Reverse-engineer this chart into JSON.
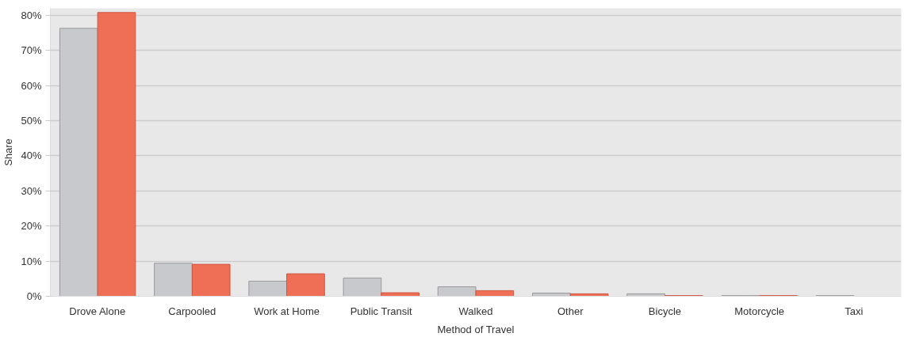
{
  "chart_data": {
    "type": "bar",
    "xlabel": "Method of Travel",
    "ylabel": "Share",
    "categories": [
      "Drove Alone",
      "Carpooled",
      "Work at Home",
      "Public Transit",
      "Walked",
      "Other",
      "Bicycle",
      "Motorcycle",
      "Taxi"
    ],
    "series": [
      {
        "color": "#c8c9cd",
        "values": [
          76.3,
          9.4,
          4.3,
          5.2,
          2.7,
          0.9,
          0.7,
          0.2,
          0.2
        ]
      },
      {
        "color": "#ee6e56",
        "values": [
          80.8,
          9.1,
          6.4,
          1.0,
          1.6,
          0.7,
          0.2,
          0.2,
          null
        ]
      }
    ],
    "ylim": [
      0,
      82
    ],
    "yticks": [
      {
        "value": 0,
        "label": "0%"
      },
      {
        "value": 10,
        "label": "10%"
      },
      {
        "value": 20,
        "label": "20%"
      },
      {
        "value": 30,
        "label": "30%"
      },
      {
        "value": 40,
        "label": "40%"
      },
      {
        "value": 50,
        "label": "50%"
      },
      {
        "value": 60,
        "label": "60%"
      },
      {
        "value": 70,
        "label": "70%"
      },
      {
        "value": 80,
        "label": "80%"
      }
    ],
    "grid": "y"
  }
}
